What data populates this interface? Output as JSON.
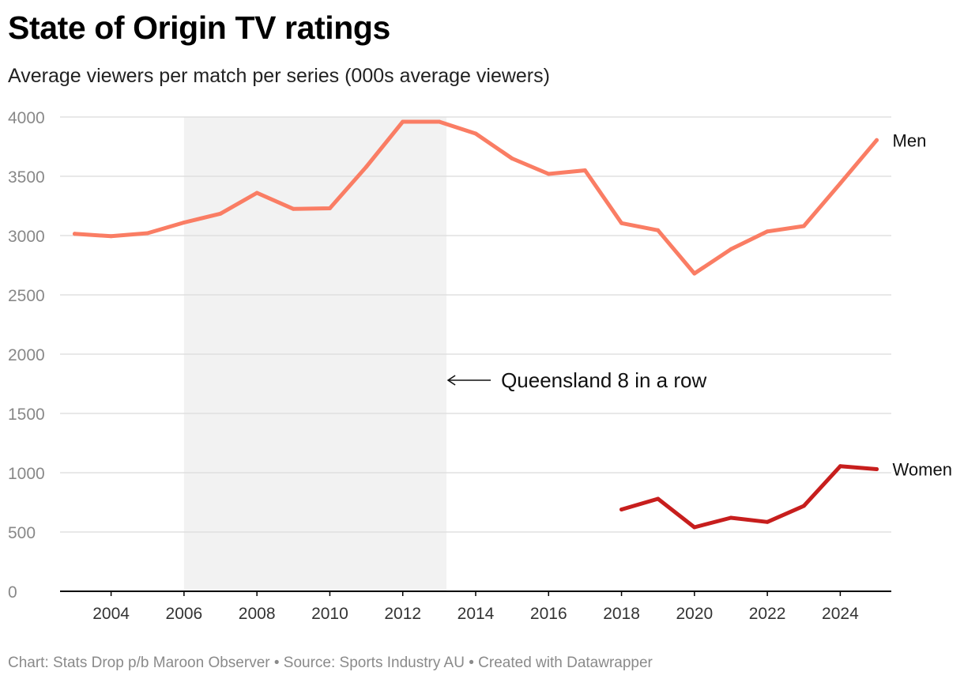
{
  "title": "State of Origin TV ratings",
  "subtitle": "Average viewers per match per series (000s average viewers)",
  "footer": "Chart: Stats Drop p/b Maroon Observer • Source: Sports Industry AU • Created with Datawrapper",
  "colors": {
    "men": "#fa7d64",
    "women": "#c71e1d",
    "highlight": "#f2f2f2",
    "grid": "#e0e0e0",
    "tick": "#888888"
  },
  "chart_data": {
    "type": "line",
    "title": "State of Origin TV ratings",
    "subtitle": "Average viewers per match per series (000s average viewers)",
    "xlabel": "",
    "ylabel": "",
    "xlim": [
      2002.6,
      2025.4
    ],
    "ylim": [
      0,
      4000
    ],
    "y_ticks": [
      0,
      500,
      1000,
      1500,
      2000,
      2500,
      3000,
      3500,
      4000
    ],
    "x_ticks": [
      2004,
      2006,
      2008,
      2010,
      2012,
      2014,
      2016,
      2018,
      2020,
      2022,
      2024
    ],
    "grid": true,
    "series": [
      {
        "name": "Men",
        "color": "#fa7d64",
        "x": [
          2003,
          2004,
          2005,
          2006,
          2007,
          2008,
          2009,
          2010,
          2011,
          2012,
          2013,
          2014,
          2015,
          2016,
          2017,
          2018,
          2019,
          2020,
          2021,
          2022,
          2023,
          2024,
          2025
        ],
        "values": [
          3015,
          2995,
          3020,
          3110,
          3185,
          3360,
          3225,
          3230,
          3580,
          3960,
          3960,
          3860,
          3650,
          3520,
          3550,
          3105,
          3045,
          2680,
          2885,
          3035,
          3080,
          3440,
          3805
        ]
      },
      {
        "name": "Women",
        "color": "#c71e1d",
        "x": [
          2018,
          2019,
          2020,
          2021,
          2022,
          2023,
          2024,
          2025
        ],
        "values": [
          690,
          780,
          540,
          620,
          585,
          720,
          1055,
          1030
        ]
      }
    ],
    "highlight_range": {
      "from": 2006,
      "to": 2013.2
    },
    "annotation": {
      "text": "Queensland 8 in a row",
      "x": 2013.2,
      "y": 1780
    }
  }
}
